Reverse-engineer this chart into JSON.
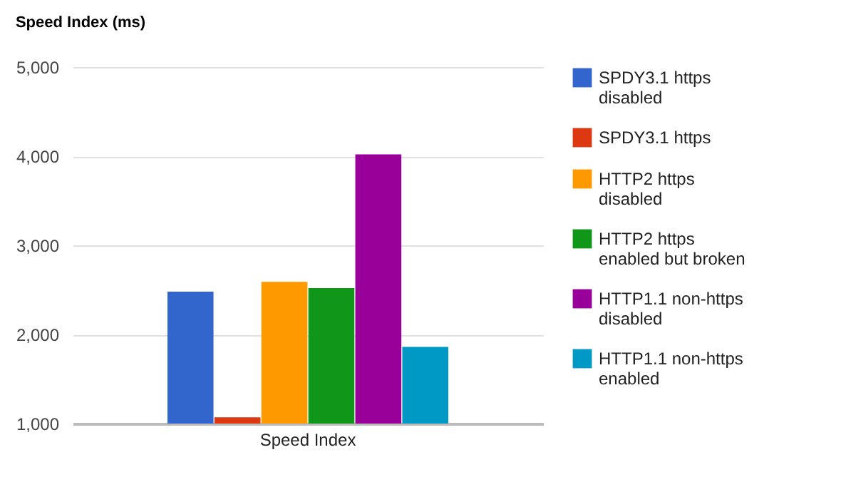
{
  "chart_data": {
    "type": "bar",
    "title": "Speed Index (ms)",
    "categories": [
      "Speed Index"
    ],
    "series": [
      {
        "name": "SPDY3.1 https disabled",
        "color": "#3366cc",
        "values": [
          2480
        ]
      },
      {
        "name": "SPDY3.1 https",
        "color": "#dc3912",
        "values": [
          1070
        ]
      },
      {
        "name": "HTTP2 https disabled",
        "color": "#ff9900",
        "values": [
          2590
        ]
      },
      {
        "name": "HTTP2 https enabled but broken",
        "color": "#109618",
        "values": [
          2520
        ]
      },
      {
        "name": "HTTP1.1 non-https disabled",
        "color": "#990099",
        "values": [
          4020
        ]
      },
      {
        "name": "HTTP1.1 non-https enabled",
        "color": "#0099c6",
        "values": [
          1860
        ]
      }
    ],
    "ylim": [
      1000,
      5000
    ],
    "yticks": [
      {
        "value": 1000,
        "label": "1,000"
      },
      {
        "value": 2000,
        "label": "2,000"
      },
      {
        "value": 3000,
        "label": "3,000"
      },
      {
        "value": 4000,
        "label": "4,000"
      },
      {
        "value": 5000,
        "label": "5,000"
      }
    ],
    "grid": "y",
    "legend": "right"
  }
}
